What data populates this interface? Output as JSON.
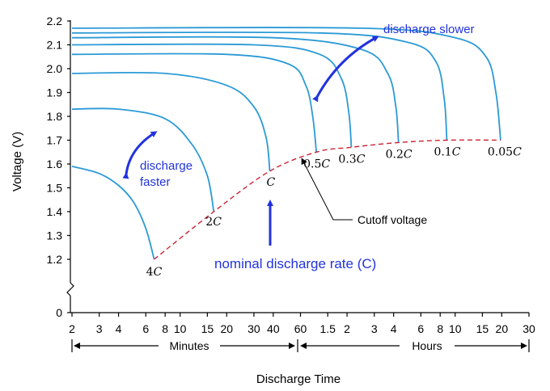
{
  "chart_data": {
    "type": "line",
    "xlabel": "Discharge Time",
    "ylabel": "Voltage (V)",
    "x_scale": "log",
    "xlim_minutes": [
      2,
      1800
    ],
    "ylim": [
      0,
      2.2
    ],
    "y_break_between": [
      0,
      1.1
    ],
    "y_ticks": [
      "0",
      "1.2",
      "1.3",
      "1.4",
      "1.5",
      "1.6",
      "1.7",
      "1.8",
      "1.9",
      "2.0",
      "2.1",
      "2.2"
    ],
    "x_tick_labels_minutes": [
      "2",
      "3",
      "4",
      "6",
      "8",
      "10",
      "15",
      "20",
      "30",
      "40",
      "60"
    ],
    "x_tick_labels_hours": [
      "1.5",
      "2",
      "3",
      "4",
      "6",
      "8",
      "10",
      "15",
      "20",
      "30"
    ],
    "x_segments": [
      "Minutes",
      "Hours"
    ],
    "series": [
      {
        "name": "4C",
        "label_text": "4",
        "x_minutes": [
          2,
          3,
          4,
          5,
          6,
          6.8
        ],
        "y": [
          1.59,
          1.56,
          1.51,
          1.44,
          1.33,
          1.2
        ]
      },
      {
        "name": "2C",
        "label_text": "2",
        "x_minutes": [
          2,
          4,
          8,
          12,
          15,
          16.5
        ],
        "y": [
          1.83,
          1.83,
          1.79,
          1.68,
          1.55,
          1.4
        ]
      },
      {
        "name": "C",
        "label_text": "",
        "x_minutes": [
          2,
          8,
          20,
          30,
          36,
          38
        ],
        "y": [
          1.98,
          1.98,
          1.93,
          1.84,
          1.71,
          1.57
        ]
      },
      {
        "name": "0.5C",
        "label_text": "0.5",
        "x_minutes": [
          2,
          20,
          50,
          65,
          72,
          76
        ],
        "y": [
          2.06,
          2.06,
          2.02,
          1.93,
          1.8,
          1.65
        ]
      },
      {
        "name": "0.3C",
        "label_text": "0.3",
        "x_minutes": [
          2,
          30,
          80,
          110,
          123,
          128
        ],
        "y": [
          2.1,
          2.1,
          2.06,
          1.96,
          1.82,
          1.67
        ]
      },
      {
        "name": "0.2C",
        "label_text": "0.2",
        "x_minutes": [
          2,
          40,
          150,
          220,
          248,
          258
        ],
        "y": [
          2.13,
          2.13,
          2.08,
          1.98,
          1.84,
          1.69
        ]
      },
      {
        "name": "0.1C",
        "label_text": "0.1",
        "x_minutes": [
          2,
          80,
          300,
          450,
          510,
          530
        ],
        "y": [
          2.15,
          2.15,
          2.11,
          2.03,
          1.87,
          1.7
        ]
      },
      {
        "name": "0.05C",
        "label_text": "0.05",
        "x_minutes": [
          2,
          150,
          600,
          950,
          1100,
          1180
        ],
        "y": [
          2.17,
          2.17,
          2.13,
          2.05,
          1.9,
          1.7
        ]
      }
    ],
    "cutoff_curve": {
      "name": "Cutoff voltage",
      "x_minutes": [
        6.8,
        16.5,
        38,
        76,
        128,
        258,
        530,
        1180
      ],
      "y": [
        1.2,
        1.4,
        1.57,
        1.65,
        1.67,
        1.69,
        1.7,
        1.7
      ]
    },
    "annotations": [
      "discharge slower",
      "discharge faster",
      "nominal discharge rate (C)",
      "Cutoff voltage"
    ],
    "colors": {
      "curves": "#2b9ad6",
      "cutoff": "#cc2233",
      "annotation": "#2233dd"
    }
  }
}
